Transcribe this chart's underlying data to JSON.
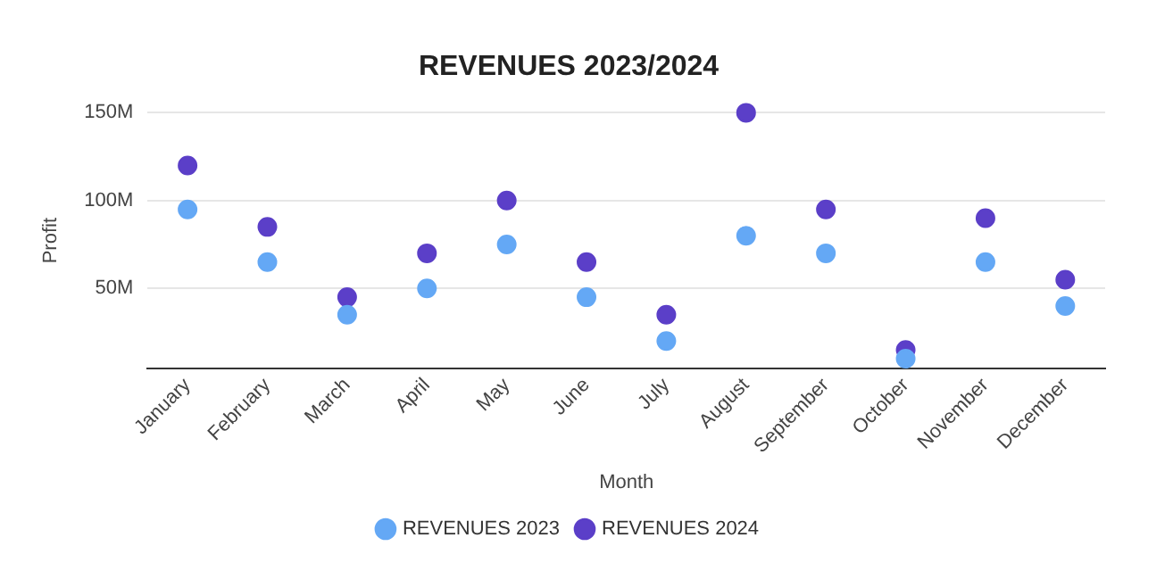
{
  "chart_data": {
    "type": "scatter",
    "title": "REVENUES 2023/2024",
    "xlabel": "Month",
    "ylabel": "Profit",
    "categories": [
      "January",
      "February",
      "March",
      "April",
      "May",
      "June",
      "July",
      "August",
      "September",
      "October",
      "November",
      "December"
    ],
    "series": [
      {
        "name": "REVENUES 2023",
        "color": "#64a8f5",
        "values": [
          95,
          65,
          35,
          50,
          75,
          45,
          20,
          80,
          70,
          10,
          65,
          40
        ]
      },
      {
        "name": "REVENUES 2024",
        "color": "#5b3fc8",
        "values": [
          120,
          85,
          45,
          70,
          100,
          65,
          35,
          150,
          95,
          15,
          90,
          55
        ]
      }
    ],
    "ylim": [
      4.5,
      150
    ],
    "yticks": [
      {
        "value": 50,
        "label": "50M"
      },
      {
        "value": 100,
        "label": "100M"
      },
      {
        "value": 150,
        "label": "150M"
      }
    ],
    "grid": "y",
    "legend": "bottom",
    "marker": "circle"
  }
}
